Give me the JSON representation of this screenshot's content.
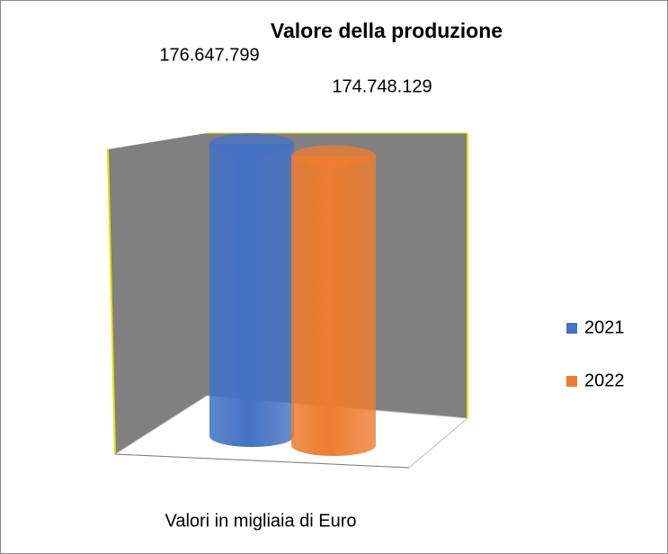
{
  "chart_data": {
    "type": "bar",
    "title": "Valore della produzione",
    "categories": [
      "Valori in migliaia di Euro"
    ],
    "series": [
      {
        "name": "2021",
        "color": "#4472c4",
        "values": [
          176647799
        ],
        "value_labels": [
          "176.647.799"
        ]
      },
      {
        "name": "2022",
        "color": "#ed7d31",
        "values": [
          174748129
        ],
        "value_labels": [
          "174.748.129"
        ]
      }
    ],
    "legend": "right"
  }
}
